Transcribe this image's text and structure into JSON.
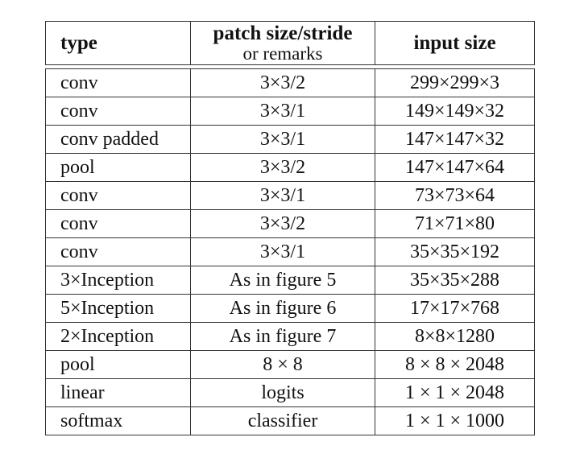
{
  "table": {
    "headers": {
      "type": "type",
      "patch_main": "patch size/stride",
      "patch_sub": "or remarks",
      "input": "input size"
    },
    "rows": [
      {
        "type": "conv",
        "patch": "3×3/2",
        "input": "299×299×3"
      },
      {
        "type": "conv",
        "patch": "3×3/1",
        "input": "149×149×32"
      },
      {
        "type": "conv padded",
        "patch": "3×3/1",
        "input": "147×147×32"
      },
      {
        "type": "pool",
        "patch": "3×3/2",
        "input": "147×147×64"
      },
      {
        "type": "conv",
        "patch": "3×3/1",
        "input": "73×73×64"
      },
      {
        "type": "conv",
        "patch": "3×3/2",
        "input": "71×71×80"
      },
      {
        "type": "conv",
        "patch": "3×3/1",
        "input": "35×35×192"
      },
      {
        "type": "3×Inception",
        "patch": "As in figure 5",
        "input": "35×35×288"
      },
      {
        "type": "5×Inception",
        "patch": "As in figure 6",
        "input": "17×17×768"
      },
      {
        "type": "2×Inception",
        "patch": "As in figure 7",
        "input": "8×8×1280"
      },
      {
        "type": "pool",
        "patch": "8 × 8",
        "input": "8 × 8 × 2048"
      },
      {
        "type": "linear",
        "patch": "logits",
        "input": "1 × 1 × 2048"
      },
      {
        "type": "softmax",
        "patch": "classifier",
        "input": "1 × 1 × 1000"
      }
    ]
  }
}
